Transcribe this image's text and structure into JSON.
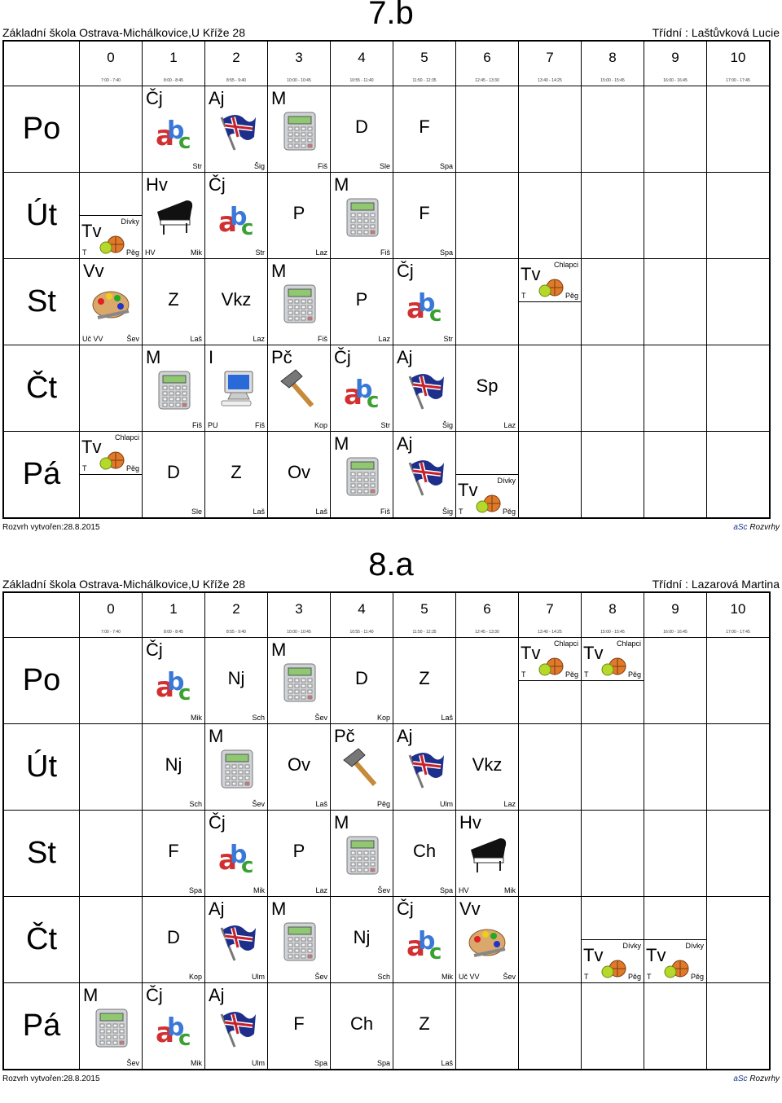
{
  "footer_created": "Rozvrh vytvořen:28.8.2015",
  "footer_brand_a": "aSc",
  "footer_brand_b": " Rozvrhy",
  "periods": [
    {
      "n": "0",
      "t": "7:00 - 7:40"
    },
    {
      "n": "1",
      "t": "8:00 - 8:45"
    },
    {
      "n": "2",
      "t": "8:55 - 9:40"
    },
    {
      "n": "3",
      "t": "10:00 - 10:45"
    },
    {
      "n": "4",
      "t": "10:55 - 11:40"
    },
    {
      "n": "5",
      "t": "11:50 - 12:35"
    },
    {
      "n": "6",
      "t": "12:45 - 13:30"
    },
    {
      "n": "7",
      "t": "13:40 - 14:25"
    },
    {
      "n": "8",
      "t": "15:00 - 15:45"
    },
    {
      "n": "9",
      "t": "16:00 - 16:45"
    },
    {
      "n": "10",
      "t": "17:00 - 17:45"
    }
  ],
  "timetables": [
    {
      "school": "Základní škola Ostrava-Michálkovice,U Kříže 28",
      "class": "7.b",
      "teacher": "Třídní : Laštůvková Lucie",
      "days": [
        {
          "name": "Po",
          "cells": [
            {
              "c": 0,
              "span": 1
            },
            {
              "c": 1,
              "s": "Čj",
              "icon": "abc",
              "r": "Str"
            },
            {
              "c": 2,
              "s": "Aj",
              "icon": "flag",
              "r": "Šig"
            },
            {
              "c": 3,
              "s": "M",
              "icon": "calc",
              "r": "Fiš"
            },
            {
              "c": 4,
              "s": "D",
              "r": "Sle",
              "center": true
            },
            {
              "c": 5,
              "s": "F",
              "r": "Spa",
              "center": true
            }
          ]
        },
        {
          "name": "Út",
          "cells": [
            {
              "c": 0,
              "tv": true,
              "grp": "Dívky",
              "tl": "T",
              "tr": "Pěg",
              "pos": "bot"
            },
            {
              "c": 1,
              "s": "Hv",
              "icon": "piano",
              "r": "Mik",
              "t": "HV"
            },
            {
              "c": 2,
              "s": "Čj",
              "icon": "abc",
              "r": "Str"
            },
            {
              "c": 3,
              "s": "P",
              "r": "Laz",
              "center": true
            },
            {
              "c": 4,
              "s": "M",
              "icon": "calc",
              "r": "Fiš"
            },
            {
              "c": 5,
              "s": "F",
              "r": "Spa",
              "center": true
            }
          ]
        },
        {
          "name": "St",
          "cells": [
            {
              "c": 0,
              "s": "Vv",
              "icon": "paint",
              "r": "Šev",
              "t": "Uč VV"
            },
            {
              "c": 1,
              "s": "Z",
              "r": "Laš",
              "center": true
            },
            {
              "c": 2,
              "s": "Vkz",
              "r": "Laz",
              "center": true
            },
            {
              "c": 3,
              "s": "M",
              "icon": "calc",
              "r": "Fiš"
            },
            {
              "c": 4,
              "s": "P",
              "r": "Laz",
              "center": true
            },
            {
              "c": 5,
              "s": "Čj",
              "icon": "abc",
              "r": "Str"
            },
            {
              "c": 7,
              "tv": true,
              "grp": "Chlapci",
              "tl": "T",
              "tr": "Pěg",
              "pos": "top"
            }
          ]
        },
        {
          "name": "Čt",
          "cells": [
            {
              "c": 1,
              "s": "M",
              "icon": "calc",
              "r": "Fiš"
            },
            {
              "c": 2,
              "s": "I",
              "icon": "pc",
              "r": "Fiš",
              "t": "PU"
            },
            {
              "c": 3,
              "s": "Pč",
              "icon": "hammer",
              "r": "Kop"
            },
            {
              "c": 4,
              "s": "Čj",
              "icon": "abc",
              "r": "Str"
            },
            {
              "c": 5,
              "s": "Aj",
              "icon": "flag",
              "r": "Šig"
            },
            {
              "c": 6,
              "s": "Sp",
              "r": "Laz",
              "center": true
            }
          ]
        },
        {
          "name": "Pá",
          "cells": [
            {
              "c": 0,
              "tv": true,
              "grp": "Chlapci",
              "tl": "T",
              "tr": "Pěg",
              "pos": "top"
            },
            {
              "c": 1,
              "s": "D",
              "r": "Sle",
              "center": true
            },
            {
              "c": 2,
              "s": "Z",
              "r": "Laš",
              "center": true
            },
            {
              "c": 3,
              "s": "Ov",
              "r": "Laš",
              "center": true
            },
            {
              "c": 4,
              "s": "M",
              "icon": "calc",
              "r": "Fiš"
            },
            {
              "c": 5,
              "s": "Aj",
              "icon": "flag",
              "r": "Šig"
            },
            {
              "c": 6,
              "tv": true,
              "grp": "Dívky",
              "tl": "T",
              "tr": "Pěg",
              "pos": "bot"
            }
          ]
        }
      ]
    },
    {
      "school": "Základní škola Ostrava-Michálkovice,U Kříže 28",
      "class": "8.a",
      "teacher": "Třídní : Lazarová Martina",
      "days": [
        {
          "name": "Po",
          "cells": [
            {
              "c": 1,
              "s": "Čj",
              "icon": "abc",
              "r": "Mik"
            },
            {
              "c": 2,
              "s": "Nj",
              "r": "Sch",
              "center": true
            },
            {
              "c": 3,
              "s": "M",
              "icon": "calc",
              "r": "Šev"
            },
            {
              "c": 4,
              "s": "D",
              "r": "Kop",
              "center": true
            },
            {
              "c": 5,
              "s": "Z",
              "r": "Laš",
              "center": true
            },
            {
              "c": 7,
              "tv": true,
              "grp": "Chlapci",
              "tl": "T",
              "tr": "Pěg",
              "pos": "top"
            },
            {
              "c": 8,
              "tv": true,
              "grp": "Chlapci",
              "tl": "T",
              "tr": "Pěg",
              "pos": "top"
            }
          ]
        },
        {
          "name": "Út",
          "cells": [
            {
              "c": 1,
              "s": "Nj",
              "r": "Sch",
              "center": true
            },
            {
              "c": 2,
              "s": "M",
              "icon": "calc",
              "r": "Šev"
            },
            {
              "c": 3,
              "s": "Ov",
              "r": "Laš",
              "center": true
            },
            {
              "c": 4,
              "s": "Pč",
              "icon": "hammer",
              "r": "Pěg"
            },
            {
              "c": 5,
              "s": "Aj",
              "icon": "flag",
              "r": "Ulm"
            },
            {
              "c": 6,
              "s": "Vkz",
              "r": "Laz",
              "center": true
            }
          ]
        },
        {
          "name": "St",
          "cells": [
            {
              "c": 1,
              "s": "F",
              "r": "Spa",
              "center": true
            },
            {
              "c": 2,
              "s": "Čj",
              "icon": "abc",
              "r": "Mik"
            },
            {
              "c": 3,
              "s": "P",
              "r": "Laz",
              "center": true
            },
            {
              "c": 4,
              "s": "M",
              "icon": "calc",
              "r": "Šev"
            },
            {
              "c": 5,
              "s": "Ch",
              "r": "Spa",
              "center": true
            },
            {
              "c": 6,
              "s": "Hv",
              "icon": "piano",
              "r": "Mik",
              "t": "HV"
            }
          ]
        },
        {
          "name": "Čt",
          "cells": [
            {
              "c": 1,
              "s": "D",
              "r": "Kop",
              "center": true
            },
            {
              "c": 2,
              "s": "Aj",
              "icon": "flag",
              "r": "Ulm"
            },
            {
              "c": 3,
              "s": "M",
              "icon": "calc",
              "r": "Šev"
            },
            {
              "c": 4,
              "s": "Nj",
              "r": "Sch",
              "center": true
            },
            {
              "c": 5,
              "s": "Čj",
              "icon": "abc",
              "r": "Mik"
            },
            {
              "c": 6,
              "s": "Vv",
              "icon": "paint",
              "r": "Šev",
              "t": "Uč VV"
            },
            {
              "c": 8,
              "tv": true,
              "grp": "Dívky",
              "tl": "T",
              "tr": "Pěg",
              "pos": "bot"
            },
            {
              "c": 9,
              "tv": true,
              "grp": "Dívky",
              "tl": "T",
              "tr": "Pěg",
              "pos": "bot"
            }
          ]
        },
        {
          "name": "Pá",
          "cells": [
            {
              "c": 0,
              "s": "M",
              "icon": "calc",
              "r": "Šev"
            },
            {
              "c": 1,
              "s": "Čj",
              "icon": "abc",
              "r": "Mik"
            },
            {
              "c": 2,
              "s": "Aj",
              "icon": "flag",
              "r": "Ulm"
            },
            {
              "c": 3,
              "s": "F",
              "r": "Spa",
              "center": true
            },
            {
              "c": 4,
              "s": "Ch",
              "r": "Spa",
              "center": true
            },
            {
              "c": 5,
              "s": "Z",
              "r": "Laš",
              "center": true
            }
          ]
        }
      ]
    }
  ]
}
